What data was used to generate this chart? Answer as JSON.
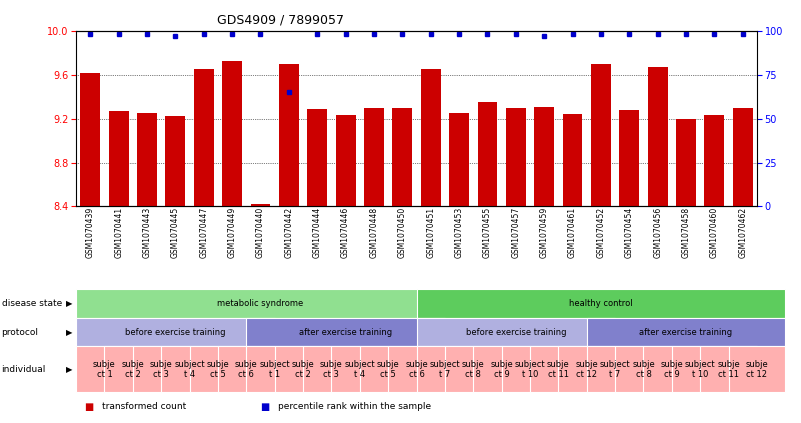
{
  "title": "GDS4909 / 7899057",
  "samples": [
    "GSM1070439",
    "GSM1070441",
    "GSM1070443",
    "GSM1070445",
    "GSM1070447",
    "GSM1070449",
    "GSM1070440",
    "GSM1070442",
    "GSM1070444",
    "GSM1070446",
    "GSM1070448",
    "GSM1070450",
    "GSM1070451",
    "GSM1070453",
    "GSM1070455",
    "GSM1070457",
    "GSM1070459",
    "GSM1070461",
    "GSM1070452",
    "GSM1070454",
    "GSM1070456",
    "GSM1070458",
    "GSM1070460",
    "GSM1070462"
  ],
  "red_values": [
    9.62,
    9.27,
    9.25,
    9.22,
    9.65,
    9.73,
    8.42,
    9.7,
    9.29,
    9.23,
    9.3,
    9.3,
    9.65,
    9.25,
    9.35,
    9.3,
    9.31,
    9.24,
    9.7,
    9.28,
    9.67,
    9.2,
    9.23,
    9.3
  ],
  "blue_values": [
    98,
    98,
    98,
    97,
    98,
    98,
    98,
    65,
    98,
    98,
    98,
    98,
    98,
    98,
    98,
    98,
    97,
    98,
    98,
    98,
    98,
    98,
    98,
    98
  ],
  "ylim_left": [
    8.4,
    10.0
  ],
  "ylim_right": [
    0,
    100
  ],
  "yticks_left": [
    8.4,
    8.8,
    9.2,
    9.6,
    10.0
  ],
  "yticks_right": [
    0,
    25,
    50,
    75,
    100
  ],
  "bar_color": "#cc0000",
  "dot_color": "#0000cc",
  "disease_state_groups": [
    {
      "label": "metabolic syndrome",
      "start": 0,
      "end": 12,
      "color": "#90e090"
    },
    {
      "label": "healthy control",
      "start": 12,
      "end": 24,
      "color": "#5dcc5d"
    }
  ],
  "protocol_groups": [
    {
      "label": "before exercise training",
      "start": 0,
      "end": 6,
      "color": "#b0b0e0"
    },
    {
      "label": "after exercise training",
      "start": 6,
      "end": 12,
      "color": "#8080cc"
    },
    {
      "label": "before exercise training",
      "start": 12,
      "end": 18,
      "color": "#b0b0e0"
    },
    {
      "label": "after exercise training",
      "start": 18,
      "end": 24,
      "color": "#8080cc"
    }
  ],
  "individual_groups": [
    {
      "label": "subje\nct 1",
      "start": 0,
      "end": 1
    },
    {
      "label": "subje\nct 2",
      "start": 1,
      "end": 2
    },
    {
      "label": "subje\nct 3",
      "start": 2,
      "end": 3
    },
    {
      "label": "subject\nt 4",
      "start": 3,
      "end": 4
    },
    {
      "label": "subje\nct 5",
      "start": 4,
      "end": 5
    },
    {
      "label": "subje\nct 6",
      "start": 5,
      "end": 6
    },
    {
      "label": "subject\nt 1",
      "start": 6,
      "end": 7
    },
    {
      "label": "subje\nct 2",
      "start": 7,
      "end": 8
    },
    {
      "label": "subje\nct 3",
      "start": 8,
      "end": 9
    },
    {
      "label": "subject\nt 4",
      "start": 9,
      "end": 10
    },
    {
      "label": "subje\nct 5",
      "start": 10,
      "end": 11
    },
    {
      "label": "subje\nct 6",
      "start": 11,
      "end": 12
    },
    {
      "label": "subject\nt 7",
      "start": 12,
      "end": 13
    },
    {
      "label": "subje\nct 8",
      "start": 13,
      "end": 14
    },
    {
      "label": "subje\nct 9",
      "start": 14,
      "end": 15
    },
    {
      "label": "subject\nt 10",
      "start": 15,
      "end": 16
    },
    {
      "label": "subje\nct 11",
      "start": 16,
      "end": 17
    },
    {
      "label": "subje\nct 12",
      "start": 17,
      "end": 18
    },
    {
      "label": "subject\nt 7",
      "start": 18,
      "end": 19
    },
    {
      "label": "subje\nct 8",
      "start": 19,
      "end": 20
    },
    {
      "label": "subje\nct 9",
      "start": 20,
      "end": 21
    },
    {
      "label": "subject\nt 10",
      "start": 21,
      "end": 22
    },
    {
      "label": "subje\nct 11",
      "start": 22,
      "end": 23
    },
    {
      "label": "subje\nct 12",
      "start": 23,
      "end": 24
    }
  ],
  "individual_color": "#ffb0b0",
  "legend": [
    {
      "color": "#cc0000",
      "label": "transformed count"
    },
    {
      "color": "#0000cc",
      "label": "percentile rank within the sample"
    }
  ]
}
